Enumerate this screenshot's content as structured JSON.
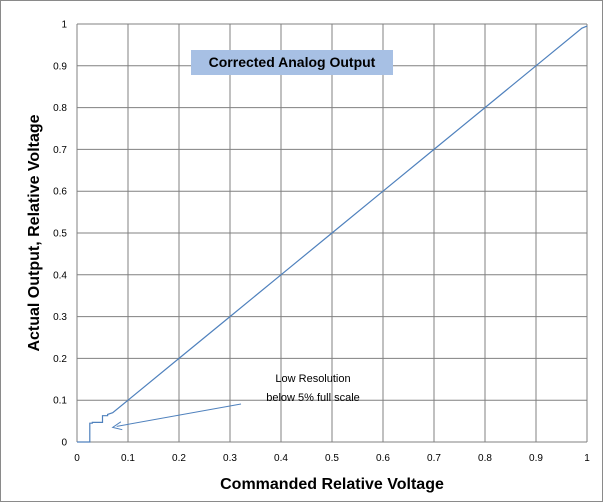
{
  "chart_data": {
    "type": "line",
    "title": "Corrected Analog Output",
    "xlabel": "Commanded  Relative Voltage",
    "ylabel": "Actual Output,  Relative Voltage",
    "xlim": [
      0,
      1
    ],
    "ylim": [
      0,
      1
    ],
    "xticks": [
      "0",
      "0.1",
      "0.2",
      "0.3",
      "0.4",
      "0.5",
      "0.6",
      "0.7",
      "0.8",
      "0.9",
      "1"
    ],
    "yticks": [
      "0",
      "0.1",
      "0.2",
      "0.3",
      "0.4",
      "0.5",
      "0.6",
      "0.7",
      "0.8",
      "0.9",
      "1"
    ],
    "grid": true,
    "legend": "none",
    "series": [
      {
        "color": "#4f81bd",
        "x": [
          0,
          0.025,
          0.025,
          0.03,
          0.03,
          0.05,
          0.05,
          0.06,
          0.06,
          0.07,
          0.1,
          0.2,
          0.3,
          0.4,
          0.5,
          0.6,
          0.7,
          0.8,
          0.9,
          0.99,
          1.0
        ],
        "y": [
          0,
          0,
          0.045,
          0.045,
          0.047,
          0.047,
          0.063,
          0.063,
          0.066,
          0.07,
          0.1,
          0.2,
          0.3,
          0.4,
          0.5,
          0.6,
          0.7,
          0.8,
          0.9,
          0.99,
          0.995
        ]
      }
    ],
    "annotations": [
      {
        "line1": "Low Resolution",
        "line2": "below 5% full scale",
        "target_x": 0.07,
        "target_y": 0.035
      }
    ],
    "colors": {
      "gridline": "#808080",
      "title_background": "#a7c0e4",
      "series": "#4f81bd",
      "arrow": "#4f81bd"
    }
  }
}
